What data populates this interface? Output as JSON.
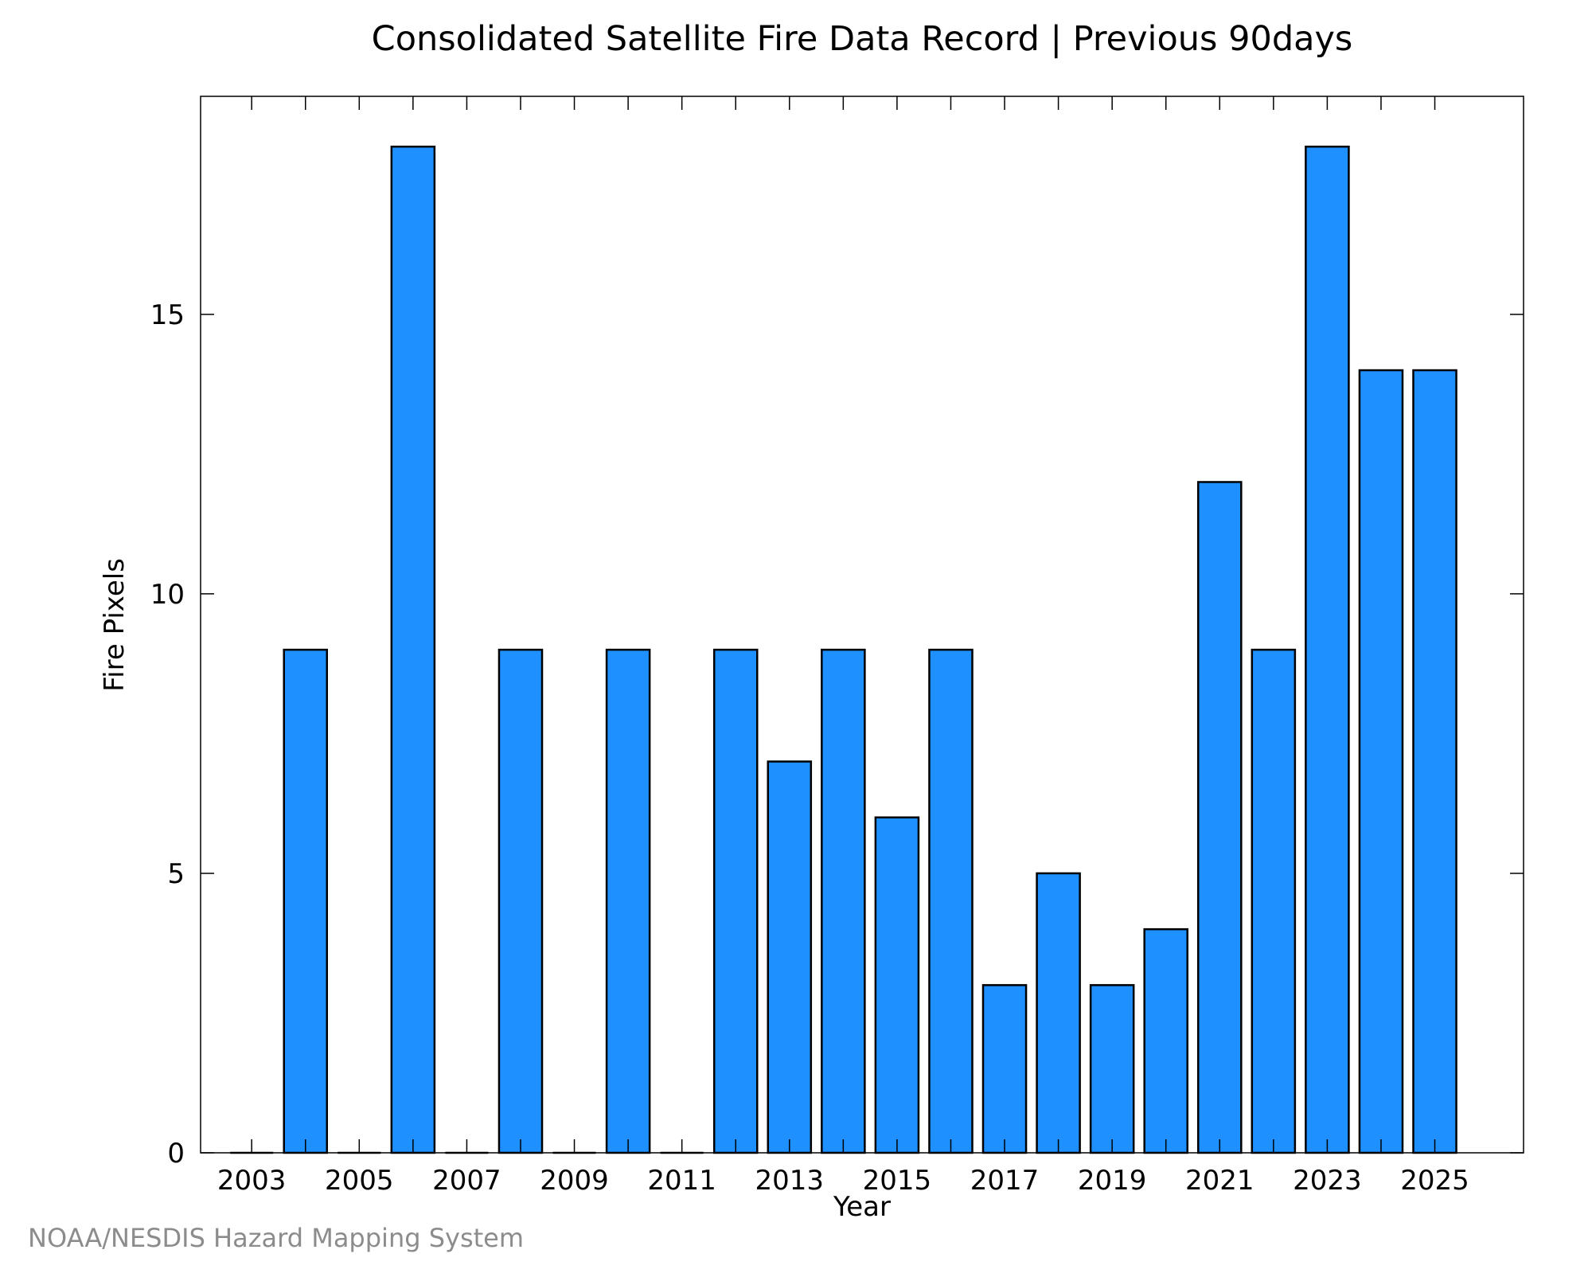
{
  "footer": {
    "credit": "NOAA/NESDIS Hazard Mapping System"
  },
  "chart_data": {
    "type": "bar",
    "title": "Consolidated Satellite Fire Data Record | Previous 90days",
    "xlabel": "Year",
    "ylabel": "Fire Pixels",
    "categories": [
      "2003",
      "2004",
      "2005",
      "2006",
      "2007",
      "2008",
      "2009",
      "2010",
      "2011",
      "2012",
      "2013",
      "2014",
      "2015",
      "2016",
      "2017",
      "2018",
      "2019",
      "2020",
      "2021",
      "2022",
      "2023",
      "2024",
      "2025"
    ],
    "values": [
      0,
      9,
      0,
      18,
      0,
      9,
      0,
      9,
      0,
      9,
      7,
      9,
      6,
      9,
      3,
      5,
      3,
      4,
      12,
      9,
      18,
      14,
      14
    ],
    "xticks": [
      "2003",
      "2005",
      "2007",
      "2009",
      "2011",
      "2013",
      "2015",
      "2017",
      "2019",
      "2021",
      "2023",
      "2025"
    ],
    "yticks": [
      0,
      5,
      10,
      15
    ],
    "ylim": [
      0,
      18.9
    ],
    "grid": false,
    "legend": "none",
    "bar_color": "#1e90ff",
    "edge_color": "#000000"
  }
}
